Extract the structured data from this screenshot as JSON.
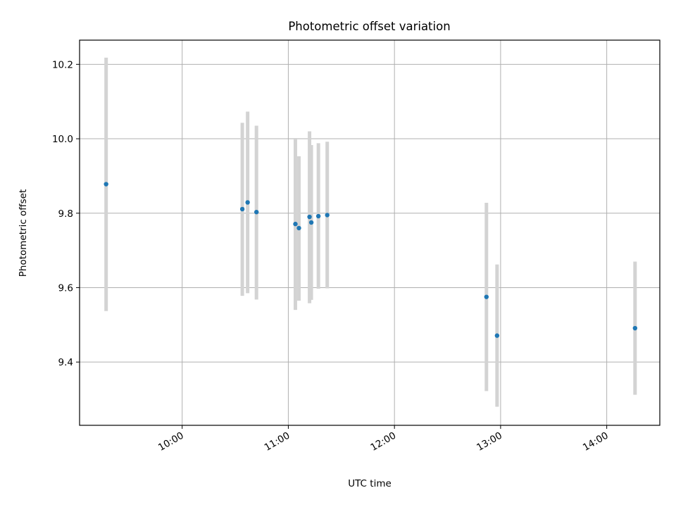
{
  "chart_data": {
    "type": "scatter",
    "title": "Photometric offset variation",
    "xlabel": "UTC time",
    "ylabel": "Photometric offset",
    "x_unit": "UTC time (HH:MM)",
    "xlim": [
      "09:02",
      "14:30"
    ],
    "ylim": [
      9.23,
      10.265
    ],
    "x_ticks": [
      "10:00",
      "11:00",
      "12:00",
      "13:00",
      "14:00"
    ],
    "y_ticks": [
      9.4,
      9.6,
      9.8,
      10.0,
      10.2
    ],
    "grid": true,
    "colors": {
      "points": "#1f77b4",
      "errorbars": "#d3d3d3",
      "grid": "#b0b0b0"
    },
    "points": [
      {
        "x": "09:17",
        "y": 9.878,
        "ylow": 9.537,
        "yhigh": 10.218
      },
      {
        "x": "10:34",
        "y": 9.811,
        "ylow": 9.578,
        "yhigh": 10.043
      },
      {
        "x": "10:37",
        "y": 9.829,
        "ylow": 9.585,
        "yhigh": 10.073
      },
      {
        "x": "10:42",
        "y": 9.803,
        "ylow": 9.568,
        "yhigh": 10.035
      },
      {
        "x": "11:04",
        "y": 9.771,
        "ylow": 9.54,
        "yhigh": 10.002
      },
      {
        "x": "11:06",
        "y": 9.76,
        "ylow": 9.565,
        "yhigh": 9.953
      },
      {
        "x": "11:12",
        "y": 9.79,
        "ylow": 9.558,
        "yhigh": 10.02
      },
      {
        "x": "11:13",
        "y": 9.775,
        "ylow": 9.567,
        "yhigh": 9.983
      },
      {
        "x": "11:17",
        "y": 9.792,
        "ylow": 9.597,
        "yhigh": 9.988
      },
      {
        "x": "11:22",
        "y": 9.795,
        "ylow": 9.598,
        "yhigh": 9.992
      },
      {
        "x": "12:52",
        "y": 9.575,
        "ylow": 9.322,
        "yhigh": 9.828
      },
      {
        "x": "12:58",
        "y": 9.471,
        "ylow": 9.28,
        "yhigh": 9.662
      },
      {
        "x": "14:16",
        "y": 9.491,
        "ylow": 9.312,
        "yhigh": 9.67
      }
    ]
  }
}
